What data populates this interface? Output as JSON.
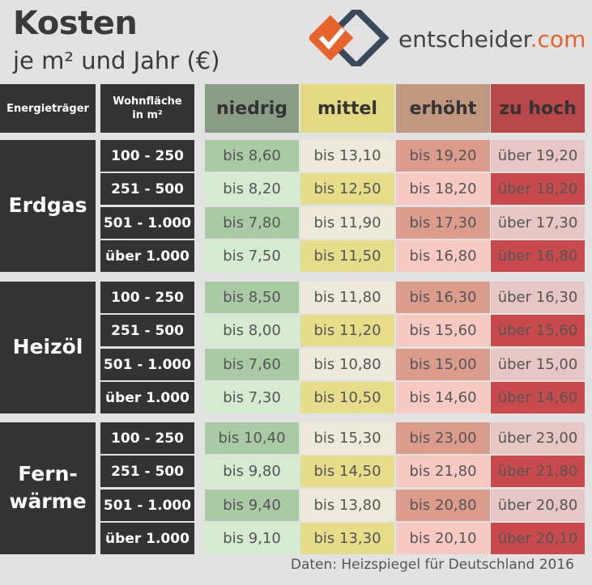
{
  "title": "Kosten",
  "subtitle": "je m² und Jahr (€)",
  "brand": {
    "name": "entscheider",
    "tld": ".com"
  },
  "header": {
    "energy": "Energieträger",
    "area_line1": "Wohnfläche",
    "area_line2": "in m²",
    "columns": [
      "niedrig",
      "mittel",
      "erhöht",
      "zu hoch"
    ]
  },
  "colors": {
    "header_bg": [
      "#8a9c86",
      "#e3d983",
      "#c09880",
      "#b8474a"
    ],
    "light": [
      "#d6ead2",
      "#edeadb",
      "#f7c9c3",
      "#e7c6c6"
    ],
    "strong": [
      "#a9caa5",
      "#e6dd8a",
      "#dc9c8c",
      "#c84a4c"
    ]
  },
  "groups": [
    {
      "name_line1": "Erdgas",
      "name_line2": "",
      "rows": [
        {
          "range": "100 - 250",
          "values": [
            "bis 8,60",
            "bis 13,10",
            "bis 19,20",
            "über 19,20"
          ],
          "strong": [
            true,
            false,
            true,
            false
          ]
        },
        {
          "range": "251 - 500",
          "values": [
            "bis 8,20",
            "bis 12,50",
            "bis 18,20",
            "über 18,20"
          ],
          "strong": [
            false,
            true,
            false,
            true
          ]
        },
        {
          "range": "501 - 1.000",
          "values": [
            "bis 7,80",
            "bis 11,90",
            "bis 17,30",
            "über 17,30"
          ],
          "strong": [
            true,
            false,
            true,
            false
          ]
        },
        {
          "range": "über 1.000",
          "values": [
            "bis 7,50",
            "bis 11,50",
            "bis 16,80",
            "über 16,80"
          ],
          "strong": [
            false,
            true,
            false,
            true
          ]
        }
      ]
    },
    {
      "name_line1": "Heizöl",
      "name_line2": "",
      "rows": [
        {
          "range": "100 - 250",
          "values": [
            "bis 8,50",
            "bis 11,80",
            "bis 16,30",
            "über 16,30"
          ],
          "strong": [
            true,
            false,
            true,
            false
          ]
        },
        {
          "range": "251 - 500",
          "values": [
            "bis 8,00",
            "bis 11,20",
            "bis 15,60",
            "über 15,60"
          ],
          "strong": [
            false,
            true,
            false,
            true
          ]
        },
        {
          "range": "501 - 1.000",
          "values": [
            "bis 7,60",
            "bis 10,80",
            "bis 15,00",
            "über 15,00"
          ],
          "strong": [
            true,
            false,
            true,
            false
          ]
        },
        {
          "range": "über 1.000",
          "values": [
            "bis 7,30",
            "bis 10,50",
            "bis 14,60",
            "über 14,60"
          ],
          "strong": [
            false,
            true,
            false,
            true
          ]
        }
      ]
    },
    {
      "name_line1": "Fern-",
      "name_line2": "wärme",
      "rows": [
        {
          "range": "100 - 250",
          "values": [
            "bis 10,40",
            "bis 15,30",
            "bis 23,00",
            "über 23,00"
          ],
          "strong": [
            true,
            false,
            true,
            false
          ]
        },
        {
          "range": "251 - 500",
          "values": [
            "bis 9,80",
            "bis 14,50",
            "bis 21,80",
            "über 21,80"
          ],
          "strong": [
            false,
            true,
            false,
            true
          ]
        },
        {
          "range": "501 - 1.000",
          "values": [
            "bis 9,40",
            "bis 13,80",
            "bis 20,80",
            "über 20,80"
          ],
          "strong": [
            true,
            false,
            true,
            false
          ]
        },
        {
          "range": "über 1.000",
          "values": [
            "bis 9,10",
            "bis 13,30",
            "bis 20,10",
            "über 20,10"
          ],
          "strong": [
            false,
            true,
            false,
            true
          ]
        }
      ]
    }
  ],
  "source": "Daten: Heizspiegel für Deutschland 2016"
}
